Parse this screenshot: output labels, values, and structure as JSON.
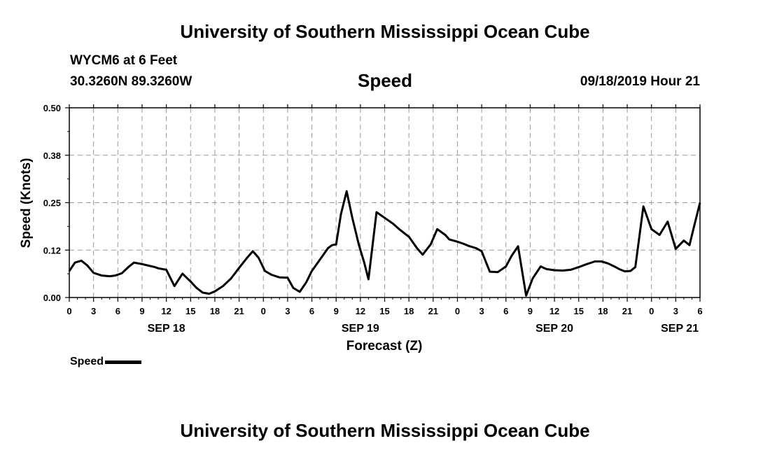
{
  "header": {
    "title": "University of Southern Mississippi Ocean Cube",
    "station": "WYCM6 at 6 Feet",
    "coordinates": "30.3260N 89.3260W",
    "chart_title": "Speed",
    "timestamp": "09/18/2019 Hour 21"
  },
  "footer": {
    "title": "University of Southern Mississippi Ocean Cube"
  },
  "legend": {
    "label": "Speed"
  },
  "chart_data": {
    "type": "line",
    "title": "Speed",
    "xlabel": "Forecast (Z)",
    "ylabel": "Speed (Knots)",
    "ylim": [
      0,
      0.5
    ],
    "yticks": [
      "0.00",
      "0.12",
      "0.25",
      "0.38",
      "0.50"
    ],
    "ytick_values": [
      0,
      0.125,
      0.25,
      0.375,
      0.5
    ],
    "xlim": [
      0,
      78
    ],
    "xtick_labels": [
      "0",
      "3",
      "6",
      "9",
      "12",
      "15",
      "18",
      "21",
      "0",
      "3",
      "6",
      "9",
      "12",
      "15",
      "18",
      "21",
      "0",
      "3",
      "6",
      "9",
      "12",
      "15",
      "18",
      "21",
      "0",
      "3",
      "6"
    ],
    "xtick_hours": [
      0,
      3,
      6,
      9,
      12,
      15,
      18,
      21,
      24,
      27,
      30,
      33,
      36,
      39,
      42,
      45,
      48,
      51,
      54,
      57,
      60,
      63,
      66,
      69,
      72,
      75,
      78
    ],
    "day_labels": [
      {
        "label": "SEP 18",
        "hour": 12
      },
      {
        "label": "SEP 19",
        "hour": 36
      },
      {
        "label": "SEP 20",
        "hour": 60
      },
      {
        "label": "SEP 21",
        "hour": 75.5
      }
    ],
    "grid": true,
    "series": [
      {
        "name": "Speed",
        "x": [
          0,
          0.7,
          1.5,
          2.2,
          3,
          4,
          5,
          5.7,
          6.5,
          7.3,
          8,
          9,
          10,
          10.6,
          11,
          12,
          13,
          14,
          15,
          15.7,
          16.5,
          17.3,
          18,
          19,
          20,
          21,
          22,
          22.7,
          23.4,
          24.2,
          25,
          26,
          27,
          27.7,
          28.5,
          29.3,
          30,
          31,
          32,
          32.5,
          33,
          33.6,
          34.3,
          35,
          35.8,
          36.5,
          37,
          38,
          39,
          40,
          40.8,
          42,
          43,
          43.7,
          44.7,
          45.5,
          46.5,
          47,
          48,
          48.7,
          49.4,
          50.3,
          51,
          52,
          53,
          54,
          54.7,
          55.5,
          56.5,
          57.3,
          58.3,
          59,
          60,
          61,
          62,
          63,
          64,
          65,
          65.8,
          66.6,
          67.4,
          68.1,
          68.7,
          69.4,
          70,
          71,
          72,
          73,
          74,
          75,
          76,
          76.7,
          77.2,
          78
        ],
        "values": [
          0.07,
          0.092,
          0.097,
          0.085,
          0.065,
          0.058,
          0.056,
          0.058,
          0.064,
          0.08,
          0.092,
          0.088,
          0.083,
          0.08,
          0.077,
          0.073,
          0.03,
          0.063,
          0.042,
          0.026,
          0.013,
          0.01,
          0.016,
          0.03,
          0.05,
          0.078,
          0.105,
          0.122,
          0.105,
          0.07,
          0.06,
          0.053,
          0.052,
          0.025,
          0.015,
          0.04,
          0.07,
          0.1,
          0.13,
          0.138,
          0.14,
          0.22,
          0.28,
          0.21,
          0.14,
          0.09,
          0.048,
          0.225,
          0.21,
          0.195,
          0.18,
          0.16,
          0.13,
          0.113,
          0.14,
          0.18,
          0.165,
          0.153,
          0.147,
          0.142,
          0.136,
          0.13,
          0.122,
          0.068,
          0.067,
          0.082,
          0.11,
          0.135,
          0.005,
          0.05,
          0.082,
          0.075,
          0.072,
          0.071,
          0.073,
          0.08,
          0.088,
          0.095,
          0.095,
          0.09,
          0.082,
          0.074,
          0.069,
          0.07,
          0.08,
          0.24,
          0.18,
          0.165,
          0.2,
          0.128,
          0.15,
          0.138,
          0.182,
          0.25
        ]
      }
    ]
  }
}
